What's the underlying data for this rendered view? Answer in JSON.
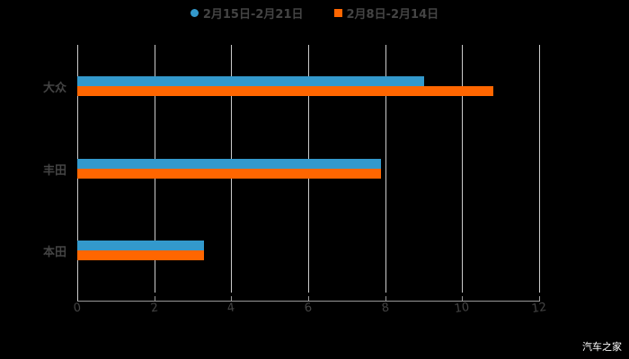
{
  "chart_data": {
    "type": "bar",
    "orientation": "horizontal",
    "title": "",
    "categories": [
      "大众",
      "丰田",
      "本田"
    ],
    "series": [
      {
        "name": "2月15日-2月21日",
        "color": "#3399CC",
        "values": [
          9.0,
          7.9,
          3.3
        ]
      },
      {
        "name": "2月8日-2月14日",
        "color": "#FF6600",
        "values": [
          10.8,
          7.9,
          3.3
        ]
      }
    ],
    "xlabel": "",
    "ylabel": "",
    "xlim": [
      0,
      12
    ],
    "x_ticks": [
      "0",
      "2",
      "4",
      "6",
      "8",
      "10",
      "12"
    ],
    "grid": true,
    "legend_position": "top"
  },
  "legend": {
    "series1": "2月15日-2月21日",
    "series2": "2月8日-2月14日"
  },
  "watermark": "汽车之家"
}
